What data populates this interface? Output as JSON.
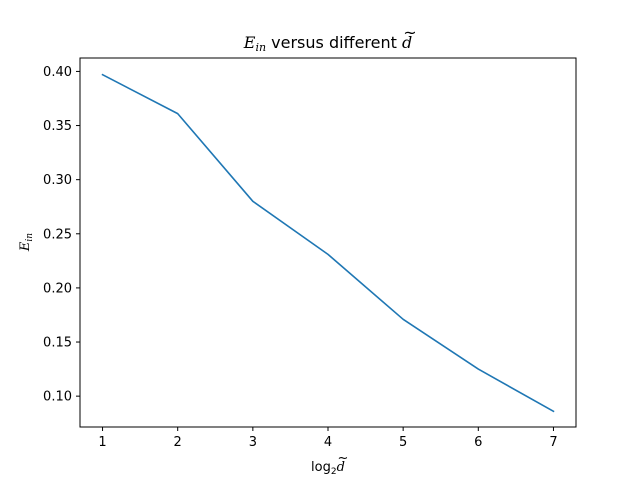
{
  "chart_data": {
    "type": "line",
    "title": {
      "main": "E",
      "main_sub": "in",
      "rest": " versus different ",
      "symbol": "d",
      "symbol_accent": "~"
    },
    "xlabel": {
      "prefix": "log",
      "sub": "2",
      "symbol": "d",
      "symbol_accent": "~"
    },
    "ylabel": {
      "main": "E",
      "sub": "in"
    },
    "x": [
      1,
      2,
      3,
      4,
      5,
      6,
      7
    ],
    "series": [
      {
        "values": [
          0.397,
          0.361,
          0.28,
          0.231,
          0.171,
          0.125,
          0.086
        ],
        "color": "#1f77b4"
      }
    ],
    "xlim": [
      0.7,
      7.3
    ],
    "ylim": [
      0.0715,
      0.4124
    ],
    "xticks": [
      1,
      2,
      3,
      4,
      5,
      6,
      7
    ],
    "xtick_labels": [
      "1",
      "2",
      "3",
      "4",
      "5",
      "6",
      "7"
    ],
    "yticks": [
      0.1,
      0.15,
      0.2,
      0.25,
      0.3,
      0.35,
      0.4
    ],
    "ytick_labels": [
      "0.10",
      "0.15",
      "0.20",
      "0.25",
      "0.30",
      "0.35",
      "0.40"
    ],
    "grid": false,
    "legend": "none"
  }
}
